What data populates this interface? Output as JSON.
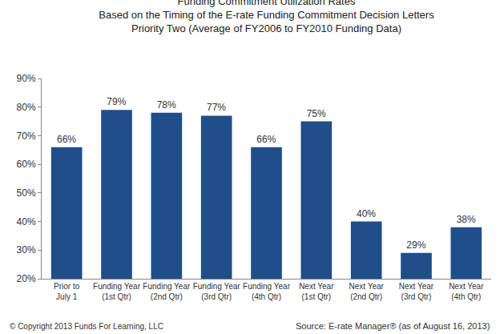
{
  "chart_data": {
    "type": "bar",
    "title": "Funding Commitment Utilization Rates",
    "subtitle": [
      "Based on the Timing of the E-rate Funding Commitment Decision Letters",
      "Priority Two (Average of FY2006 to FY2010 Funding Data)"
    ],
    "categories": [
      "Prior to\nJuly 1",
      "Funding Year\n(1st Qtr)",
      "Funding Year\n(2nd Qtr)",
      "Funding Year\n(3rd Qtr)",
      "Funding Year\n(4th Qtr)",
      "Next Year\n(1st Qtr)",
      "Next Year\n(2nd Qtr)",
      "Next Year\n(3rd Qtr)",
      "Next Year\n(4th Qtr)"
    ],
    "values": [
      66,
      79,
      78,
      77,
      66,
      75,
      40,
      29,
      38
    ],
    "value_labels": [
      "66%",
      "79%",
      "78%",
      "77%",
      "66%",
      "75%",
      "40%",
      "29%",
      "38%"
    ],
    "data_labels": true,
    "color": "#1f4e89",
    "ylim": [
      20,
      90
    ],
    "yticks": [
      {
        "value": 20,
        "label": "20%"
      },
      {
        "value": 30,
        "label": "30%"
      },
      {
        "value": 40,
        "label": "40%"
      },
      {
        "value": 50,
        "label": "50%"
      },
      {
        "value": 60,
        "label": "60%"
      },
      {
        "value": 70,
        "label": "70%"
      },
      {
        "value": 80,
        "label": "80%"
      },
      {
        "value": 90,
        "label": "90%"
      }
    ],
    "grid": false,
    "annotations": [
      "© Copyright 2013 Funds For Learning, LLC",
      "Source: E-rate Manager® (as of August 16, 2013)"
    ]
  }
}
